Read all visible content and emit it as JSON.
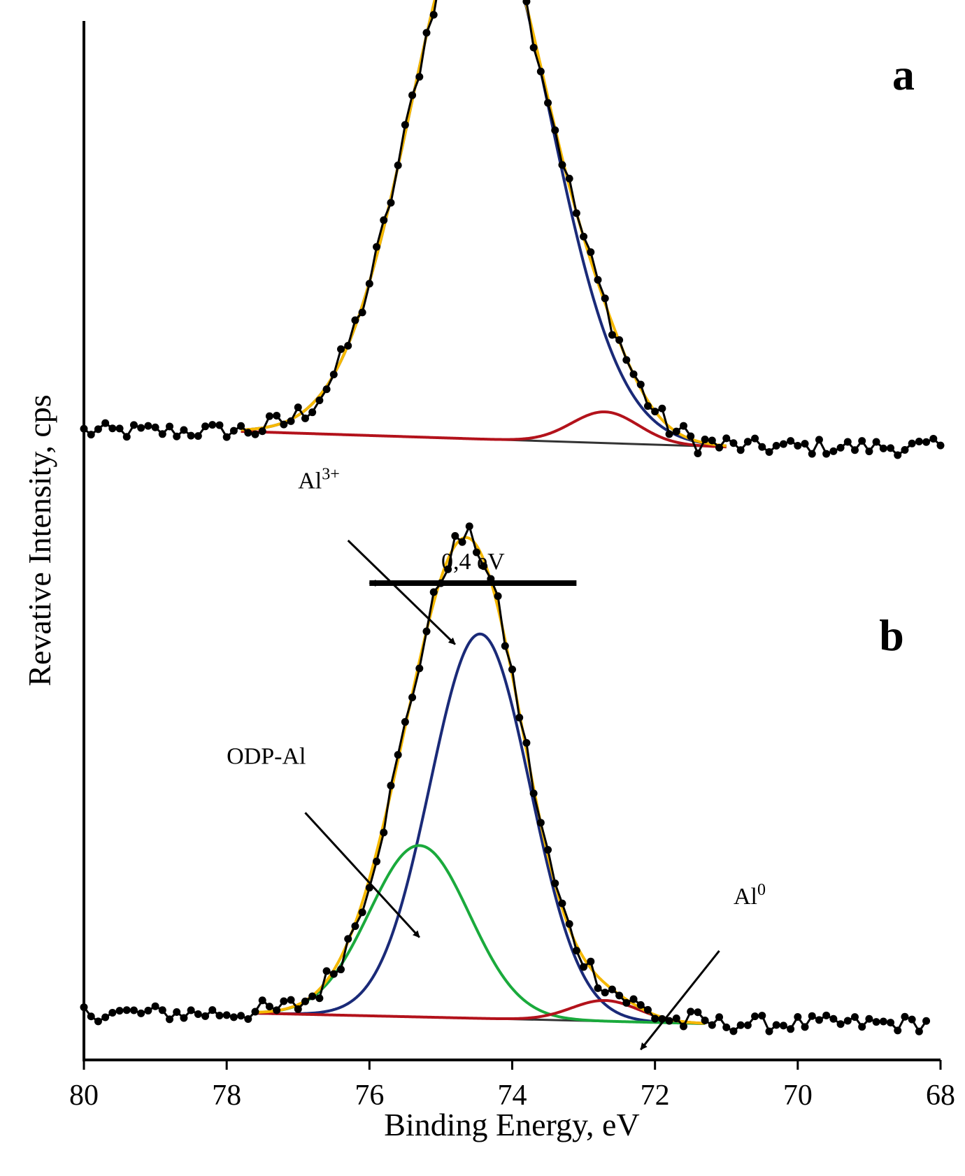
{
  "chart_data": {
    "type": "line",
    "title": "",
    "xlabel": "Binding Energy, eV",
    "ylabel": "Revative Intensity, cps",
    "xlim": [
      80,
      68
    ],
    "x_reversed": true,
    "x_ticks": [
      "80",
      "78",
      "76",
      "74",
      "72",
      "70",
      "68"
    ],
    "ylim": [
      0,
      1
    ],
    "y_ticks": [],
    "grid": false,
    "legend": "none",
    "colors": {
      "envelope": "#f5b800",
      "al3": "#1a2a78",
      "al0": "#b3121b",
      "odp": "#1aaa3c",
      "background": "#333333",
      "data": "#000000"
    },
    "panels": [
      {
        "label": "a",
        "baseline": 0.0,
        "offset_y": 0.595,
        "background_line": {
          "x_start": 77.8,
          "y_start": 0.01,
          "x_end": 71.0,
          "y_end": -0.005
        },
        "components": [
          {
            "name": "Al3+",
            "color_key": "al3",
            "center": 74.45,
            "height": 0.52,
            "fwhm": 2.3
          },
          {
            "name": "Al0",
            "color_key": "al0",
            "center": 72.7,
            "height": 0.03,
            "fwhm": 1.1
          }
        ],
        "data_range": [
          80.0,
          68.0
        ],
        "annotations": [
          {
            "text": "Al",
            "sup": "3+",
            "x_text": 77.0,
            "y_text": 0.55,
            "arrow_from": [
              76.3,
              0.5
            ],
            "arrow_to": [
              74.8,
              0.4
            ]
          },
          {
            "text": "Al",
            "sup": "0",
            "x_text": 70.9,
            "y_text": 0.15,
            "arrow_from": [
              71.1,
              0.105
            ],
            "arrow_to": [
              72.2,
              0.01
            ]
          }
        ]
      },
      {
        "label": "b",
        "baseline": 0.0,
        "offset_y": 0.04,
        "background_line": {
          "x_start": 77.6,
          "y_start": 0.005,
          "x_end": 71.3,
          "y_end": -0.005
        },
        "components": [
          {
            "name": "Al3+",
            "color_key": "al3",
            "center": 74.45,
            "height": 0.37,
            "fwhm": 1.65
          },
          {
            "name": "ODP-Al",
            "color_key": "odp",
            "center": 75.3,
            "height": 0.165,
            "fwhm": 1.65
          },
          {
            "name": "Al0",
            "color_key": "al0",
            "center": 72.7,
            "height": 0.02,
            "fwhm": 1.1
          }
        ],
        "data_range": [
          80.0,
          68.2
        ],
        "annotations": [
          {
            "text": "ODP-Al",
            "sup": "",
            "x_text": 78.0,
            "y_text": 0.285,
            "arrow_from": [
              76.9,
              0.238
            ],
            "arrow_to": [
              75.3,
              0.118
            ]
          }
        ]
      }
    ],
    "shift_annotation": {
      "text": "0,4 eV",
      "x_from": 73.1,
      "x_to": 76.0
    }
  }
}
